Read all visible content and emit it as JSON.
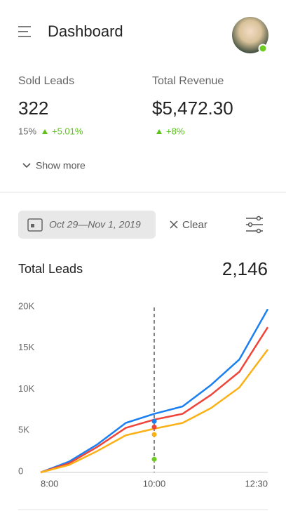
{
  "header": {
    "title": "Dashboard"
  },
  "stats": [
    {
      "label": "Sold Leads",
      "value": "322",
      "share": "15%",
      "change": "+5.01%"
    },
    {
      "label": "Total Revenue",
      "value": "$5,472.30",
      "change": "+8%"
    }
  ],
  "show_more": "Show more",
  "filter": {
    "date_range": "Oct 29—Nov 1, 2019",
    "clear": "Clear"
  },
  "chart_data": {
    "type": "line",
    "title": "Total Leads",
    "total": "2,146",
    "categories": [
      "8:00",
      null,
      null,
      null,
      "10:00",
      null,
      null,
      null,
      "12:30"
    ],
    "series": [
      {
        "color": "#1a7ff0",
        "values": [
          0,
          1300,
          3400,
          6000,
          7100,
          8000,
          10600,
          13700,
          19800
        ]
      },
      {
        "color": "#f0443a",
        "values": [
          0,
          1100,
          3100,
          5400,
          6400,
          7100,
          9400,
          12200,
          17600
        ]
      },
      {
        "color": "#fbb116",
        "values": [
          0,
          900,
          2600,
          4500,
          5300,
          6000,
          7800,
          10300,
          14900
        ]
      }
    ],
    "cursor_index": 4,
    "markers": [
      {
        "color": "#1a7ff0",
        "value": 6200
      },
      {
        "color": "#f0443a",
        "value": 5500
      },
      {
        "color": "#fbb116",
        "value": 4600
      },
      {
        "color": "#6ccc1f",
        "value": 1600
      }
    ],
    "ylim": [
      0,
      20000
    ],
    "yticks": [
      0,
      {
        "value": 5000,
        "label": "5K"
      },
      {
        "value": 10000,
        "label": "10K"
      },
      {
        "value": 15000,
        "label": "15K"
      },
      {
        "value": 20000,
        "label": "20K"
      }
    ],
    "grid": false
  }
}
